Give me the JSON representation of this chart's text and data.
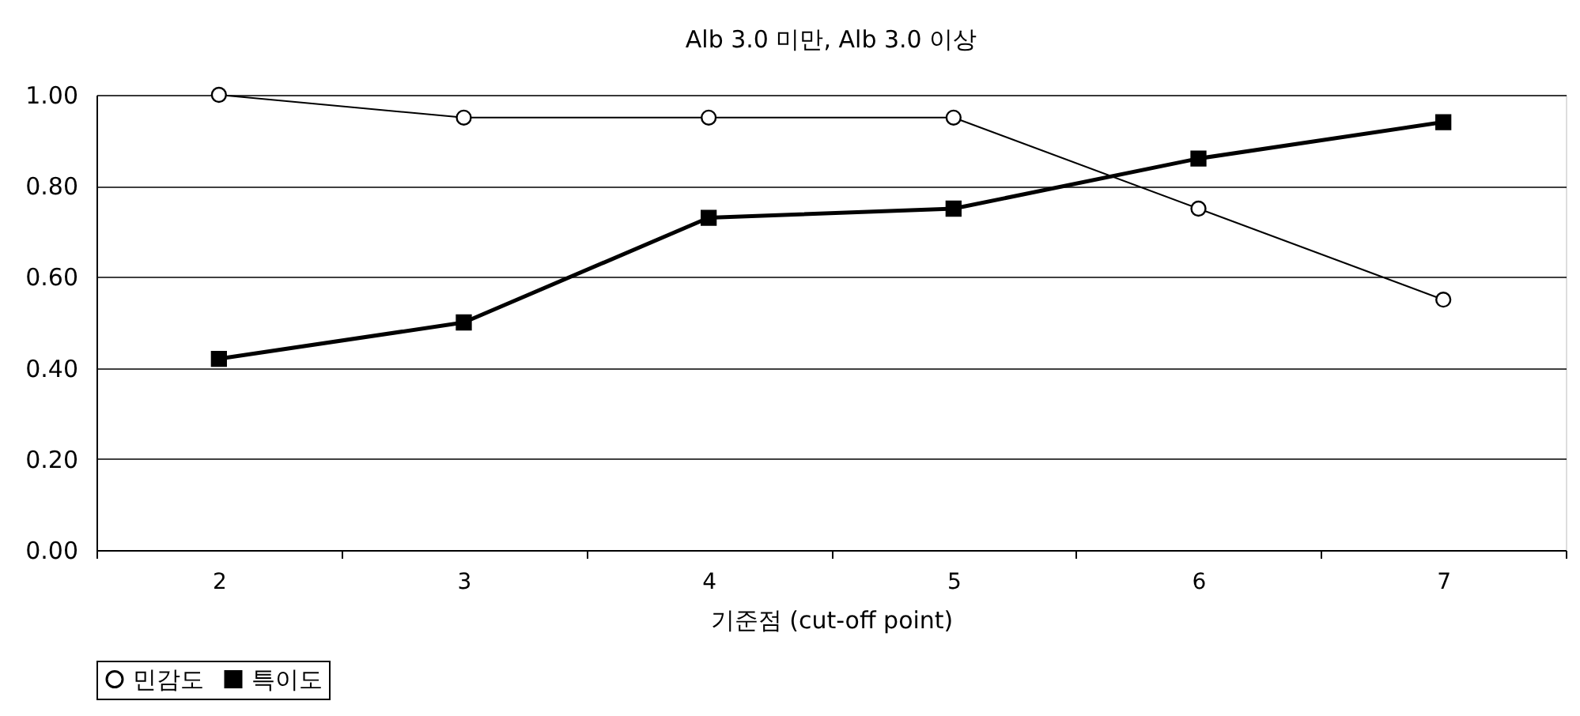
{
  "chart_data": {
    "type": "line",
    "title": "Alb 3.0 미만,  Alb 3.0 이상",
    "xlabel": "기준점 (cut-off point)",
    "categories": [
      "2",
      "3",
      "4",
      "5",
      "6",
      "7"
    ],
    "series": [
      {
        "name": "민감도",
        "color": "#000000",
        "marker": "circle",
        "values": [
          1.0,
          0.95,
          0.95,
          0.95,
          0.75,
          0.55
        ]
      },
      {
        "name": "특이도",
        "color": "#000000",
        "marker": "square",
        "values": [
          0.42,
          0.5,
          0.73,
          0.75,
          0.86,
          0.94
        ]
      }
    ],
    "ylim": [
      0,
      1
    ],
    "yticks": [
      {
        "value": 0,
        "label": "0.00"
      },
      {
        "value": 0.2,
        "label": "0.20"
      },
      {
        "value": 0.4,
        "label": "0.40"
      },
      {
        "value": 0.6,
        "label": "0.60"
      },
      {
        "value": 0.8,
        "label": "0.80"
      },
      {
        "value": 1,
        "label": "1.00"
      }
    ],
    "grid": "y",
    "legend": "bottom"
  }
}
